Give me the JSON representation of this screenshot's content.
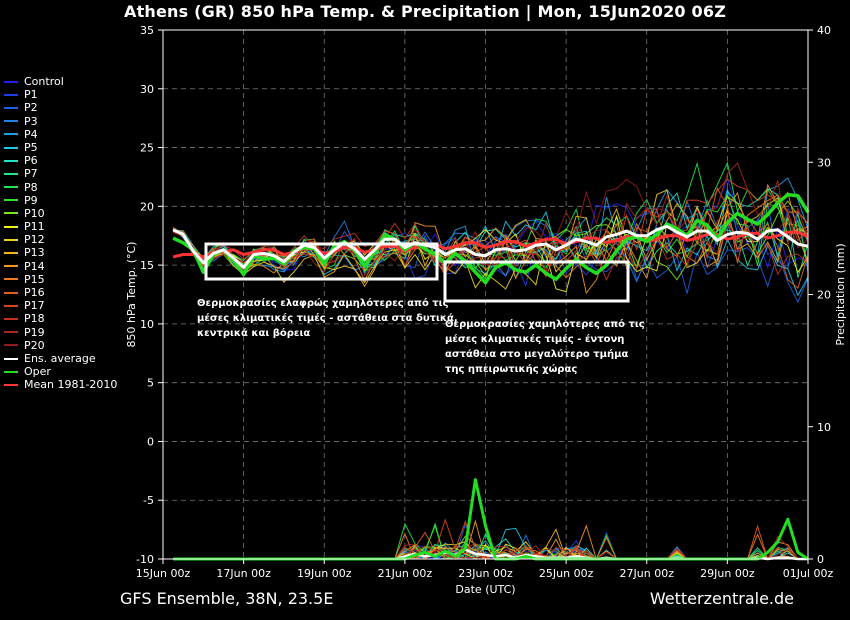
{
  "title": "Athens  (GR)  850 hPa Temp. & Precipitation | Mon, 15Jun2020 06Z",
  "footer": {
    "left": "GFS Ensemble, 38N, 23.5E",
    "right": "Wetterzentrale.de"
  },
  "annotations": [
    "Θερμοκρασίες ελαφρώς χαμηλότερες από τις",
    "μέσες κλιματικές τιμές - αστάθεια στα δυτικά,",
    "κεντρικά και βόρεια",
    "Θερμοκρασίες χαμηλότερες από τις",
    "μέσες κλιματικές τιμές - έντονη",
    "αστάθεια στο μεγαλύτερο τμήμα",
    "της ηπειρωτικής χώρας"
  ],
  "legend": [
    {
      "label": "Control",
      "color": "#2222ee"
    },
    {
      "label": "P1",
      "color": "#1f3fe6"
    },
    {
      "label": "P2",
      "color": "#1f5ee6"
    },
    {
      "label": "P3",
      "color": "#1f80e6"
    },
    {
      "label": "P4",
      "color": "#1fa0e6"
    },
    {
      "label": "P5",
      "color": "#1fc6e6"
    },
    {
      "label": "P6",
      "color": "#1fe6c6"
    },
    {
      "label": "P7",
      "color": "#1fe68a"
    },
    {
      "label": "P8",
      "color": "#1fe650"
    },
    {
      "label": "P9",
      "color": "#2ce61f"
    },
    {
      "label": "P10",
      "color": "#7ae61f"
    },
    {
      "label": "P11",
      "color": "#f0f01f"
    },
    {
      "label": "P12",
      "color": "#f0d21f"
    },
    {
      "label": "P13",
      "color": "#f0b41f"
    },
    {
      "label": "P14",
      "color": "#f0961f"
    },
    {
      "label": "P15",
      "color": "#f07a1f"
    },
    {
      "label": "P16",
      "color": "#e65c1f"
    },
    {
      "label": "P17",
      "color": "#d6461f"
    },
    {
      "label": "P18",
      "color": "#c0341f"
    },
    {
      "label": "P19",
      "color": "#a8281f"
    },
    {
      "label": "P20",
      "color": "#901c1f"
    },
    {
      "label": "Ens. average",
      "color": "#ffffff"
    },
    {
      "label": "Oper",
      "color": "#22dd22"
    },
    {
      "label": "Mean 1981-2010",
      "color": "#ff3333"
    }
  ],
  "chart_data": {
    "type": "line",
    "ylabel": "850 hPa Temp. (°C)",
    "y2label": "Precipitation (mm)",
    "xlabel": "Date (UTC)",
    "ylim": [
      -10,
      35
    ],
    "y2lim": [
      0,
      40
    ],
    "yticks": [
      -10,
      -5,
      0,
      5,
      10,
      15,
      20,
      25,
      30,
      35
    ],
    "y2ticks": [
      0,
      10,
      20,
      30,
      40
    ],
    "xlim": [
      0,
      16
    ],
    "xticks": [
      {
        "day": 0,
        "label": "15Jun 00z"
      },
      {
        "day": 2,
        "label": "17Jun 00z"
      },
      {
        "day": 4,
        "label": "19Jun 00z"
      },
      {
        "day": 6,
        "label": "21Jun 00z"
      },
      {
        "day": 8,
        "label": "23Jun 00z"
      },
      {
        "day": 10,
        "label": "25Jun 00z"
      },
      {
        "day": 12,
        "label": "27Jun 00z"
      },
      {
        "day": 14,
        "label": "29Jun 00z"
      },
      {
        "day": 16,
        "label": "01Jul 00z"
      }
    ],
    "grid": true,
    "x_step_days": 0.25,
    "x_start_day": 0.25,
    "mean": [
      15.7,
      15.9,
      15.9,
      15.7,
      16.1,
      16.1,
      16.3,
      15.9,
      16.1,
      16.3,
      16.3,
      15.9,
      16.1,
      16.4,
      16.4,
      16.0,
      16.2,
      16.5,
      16.5,
      16.1,
      16.3,
      16.6,
      16.6,
      16.2,
      16.5,
      16.8,
      16.8,
      16.4,
      16.6,
      16.9,
      16.9,
      16.5,
      16.7,
      17.0,
      17.0,
      16.6,
      16.9,
      17.2,
      17.2,
      16.8,
      17.0,
      17.3,
      17.3,
      16.9,
      17.1,
      17.4,
      17.4,
      17.0,
      17.2,
      17.5,
      17.5,
      17.1,
      17.3,
      17.6,
      17.6,
      17.2,
      17.4,
      17.7,
      17.7,
      17.3,
      17.5,
      17.8,
      17.8,
      17.4
    ],
    "oper": [
      17.3,
      16.9,
      16.3,
      14.4,
      15.9,
      16.3,
      15.4,
      14.2,
      15.8,
      15.5,
      15.6,
      15.1,
      16.2,
      16.5,
      16.4,
      15.1,
      16.6,
      17.0,
      16.3,
      14.9,
      16.1,
      17.6,
      17.2,
      16.3,
      16.9,
      16.4,
      15.9,
      15.2,
      16.0,
      15.3,
      14.4,
      13.5,
      14.8,
      15.2,
      14.6,
      14.4,
      15.0,
      14.3,
      13.8,
      14.7,
      15.5,
      14.8,
      14.3,
      15.0,
      16.2,
      17.2,
      17.4,
      17.0,
      17.6,
      18.5,
      18.1,
      17.5,
      18.8,
      18.4,
      17.2,
      18.6,
      19.4,
      18.9,
      18.5,
      19.3,
      20.3,
      21.0,
      20.9,
      19.5
    ],
    "ens_avg": [
      18.0,
      17.6,
      16.2,
      15.2,
      16.0,
      16.3,
      15.6,
      14.8,
      15.9,
      16.0,
      15.8,
      15.3,
      16.1,
      16.7,
      16.5,
      15.6,
      16.3,
      16.9,
      16.4,
      15.5,
      16.3,
      17.2,
      17.2,
      16.5,
      16.9,
      16.7,
      16.5,
      15.9,
      16.3,
      16.4,
      15.9,
      15.8,
      16.3,
      16.4,
      16.2,
      16.3,
      16.7,
      16.8,
      16.3,
      16.7,
      17.2,
      17.0,
      16.7,
      17.4,
      17.6,
      17.9,
      17.5,
      17.5,
      18.0,
      18.3,
      17.8,
      17.4,
      17.9,
      17.9,
      17.1,
      17.6,
      17.8,
      17.7,
      17.2,
      17.9,
      18.0,
      17.4,
      16.8,
      16.6
    ],
    "precip_oper": [
      0,
      0,
      0,
      0,
      0,
      0,
      0,
      0,
      0,
      0,
      0,
      0,
      0,
      0,
      0,
      0,
      0,
      0,
      0,
      0,
      0,
      0,
      0,
      0,
      0.3,
      0.5,
      0.2,
      0.6,
      0.2,
      0.8,
      6.0,
      2.5,
      0,
      0,
      0,
      0.2,
      0,
      0,
      0,
      0,
      0,
      0,
      0,
      0,
      0,
      0,
      0,
      0,
      0,
      0,
      0,
      0,
      0,
      0,
      0,
      0,
      0,
      0,
      0,
      0.5,
      1.3,
      3.0,
      0.5,
      0
    ],
    "precip_avg": [
      0,
      0,
      0,
      0,
      0,
      0,
      0,
      0,
      0,
      0,
      0,
      0,
      0,
      0,
      0,
      0,
      0,
      0,
      0,
      0,
      0,
      0,
      0,
      0.2,
      0.4,
      0.2,
      0.3,
      0.5,
      0.3,
      0.7,
      0.4,
      0.3,
      0.2,
      0.3,
      0.1,
      0.3,
      0.2,
      0.1,
      0.1,
      0.1,
      0.2,
      0.1,
      0,
      0.1,
      0,
      0,
      0,
      0,
      0,
      0,
      0.1,
      0,
      0,
      0,
      0,
      0,
      0,
      0,
      0.1,
      0,
      0.1,
      0.1,
      0,
      0
    ]
  }
}
